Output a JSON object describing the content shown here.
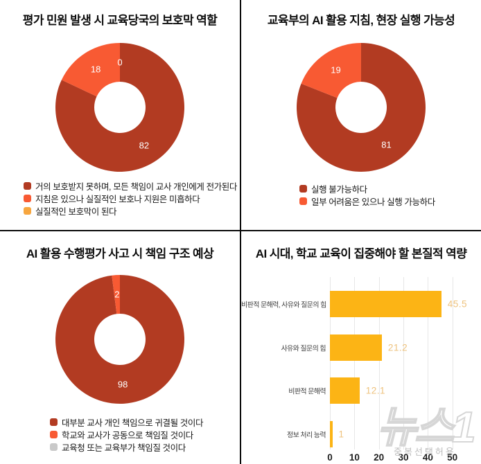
{
  "watermark": {
    "logo_text": "뉴스1",
    "note": "중복선택허용"
  },
  "chart_data": [
    {
      "type": "pie",
      "donut": true,
      "title": "평가 민원 발생 시 교육당국의 보호막 역할",
      "labels": [
        "거의 보호받지 못하며, 모든 책임이 교사 개인에게 전가된다",
        "지침은 있으나 실질적인 보호나 지원은 미흡하다",
        "실질적인 보호막이 된다"
      ],
      "values": [
        82,
        18,
        0
      ],
      "colors": [
        "#b23b22",
        "#f85a33",
        "#f7a63f"
      ],
      "show_zero_labels": true,
      "slice_label_color": "#ffffff",
      "legend_position": "bottom-left"
    },
    {
      "type": "pie",
      "donut": true,
      "title": "교육부의 AI 활용 지침, 현장 실행 가능성",
      "labels": [
        "실행 불가능하다",
        "일부 어려움은 있으나 실행 가능하다"
      ],
      "values": [
        81,
        19
      ],
      "colors": [
        "#b23b22",
        "#f85a33"
      ],
      "show_zero_labels": false,
      "slice_label_color": "#ffffff",
      "legend_position": "bottom-left"
    },
    {
      "type": "pie",
      "donut": true,
      "title": "AI 활용 수행평가 사고 시 책임 구조 예상",
      "labels": [
        "대부분 교사 개인 책임으로 귀결될 것이다",
        "학교와 교사가 공동으로 책임질 것이다",
        "교육청 또는 교육부가 책임질 것이다"
      ],
      "values": [
        98,
        2,
        0
      ],
      "colors": [
        "#b23b22",
        "#f85a33",
        "#c9c9c9"
      ],
      "show_zero_labels": false,
      "slice_label_color": "#ffffff",
      "legend_position": "bottom-left"
    },
    {
      "type": "bar",
      "orientation": "horizontal",
      "title": "AI 시대, 학교 교육이 집중해야 할 본질적 역량",
      "categories": [
        "비판적 문해력, 사유와 질문의 힘",
        "사유와 질문의 힘",
        "비판적 문해력",
        "정보 처리 능력"
      ],
      "values": [
        45.5,
        21.2,
        12.1,
        1
      ],
      "xticks": [
        0,
        10,
        20,
        30,
        40,
        50
      ],
      "xlim": [
        0,
        60
      ],
      "grid": true,
      "bar_color": "#fcb415",
      "value_label_color": "#eec27d",
      "tick_label_color": "#1e1e1e"
    }
  ]
}
